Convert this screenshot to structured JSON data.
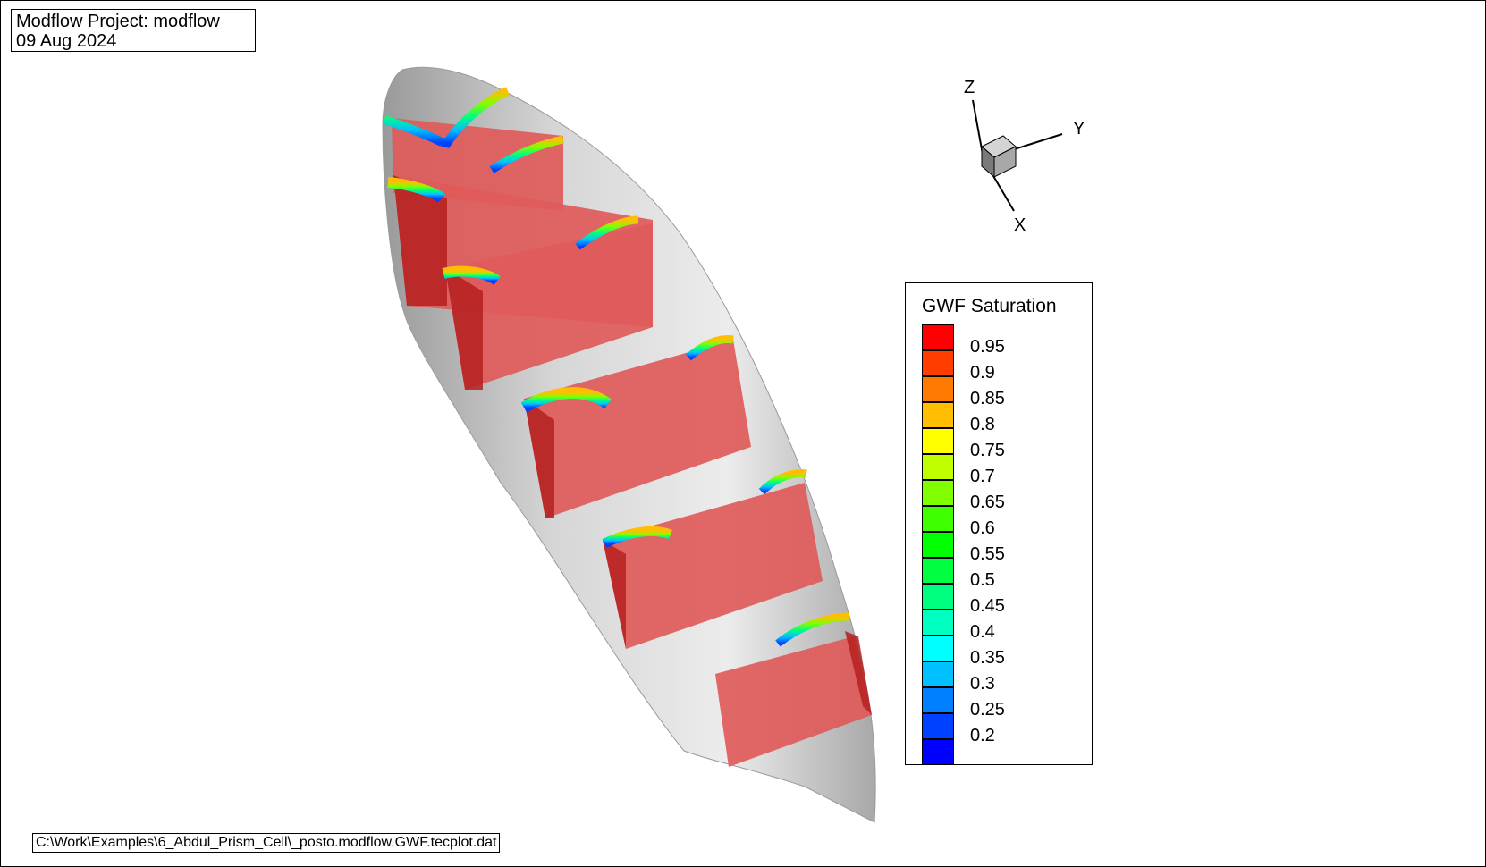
{
  "header": {
    "project_line": "Modflow Project: modflow",
    "date_line": "09 Aug 2024"
  },
  "footer": {
    "file_path": "C:\\Work\\Examples\\6_Abdul_Prism_Cell\\_posto.modflow.GWF.tecplot.dat"
  },
  "axes_triad": {
    "x_label": "X",
    "y_label": "Y",
    "z_label": "Z"
  },
  "legend": {
    "title": "GWF Saturation",
    "levels": [
      {
        "label": "0.95",
        "color": "#ff0000"
      },
      {
        "label": "0.9",
        "color": "#ff3d00"
      },
      {
        "label": "0.85",
        "color": "#ff7a00"
      },
      {
        "label": "0.8",
        "color": "#ffbf00"
      },
      {
        "label": "0.75",
        "color": "#ffff00"
      },
      {
        "label": "0.7",
        "color": "#c0ff00"
      },
      {
        "label": "0.65",
        "color": "#80ff00"
      },
      {
        "label": "0.6",
        "color": "#40ff00"
      },
      {
        "label": "0.55",
        "color": "#00ff00"
      },
      {
        "label": "0.5",
        "color": "#00ff40"
      },
      {
        "label": "0.45",
        "color": "#00ff80"
      },
      {
        "label": "0.4",
        "color": "#00ffc0"
      },
      {
        "label": "0.35",
        "color": "#00ffff"
      },
      {
        "label": "0.3",
        "color": "#00c0ff"
      },
      {
        "label": "0.25",
        "color": "#0080ff"
      },
      {
        "label": "0.2",
        "color": "#0040ff"
      },
      {
        "label": "",
        "color": "#0000ff"
      }
    ]
  },
  "colors": {
    "hull": "#c8c8c8",
    "slice_fill": "#e05a5a",
    "slice_shadow": "#b52020"
  }
}
